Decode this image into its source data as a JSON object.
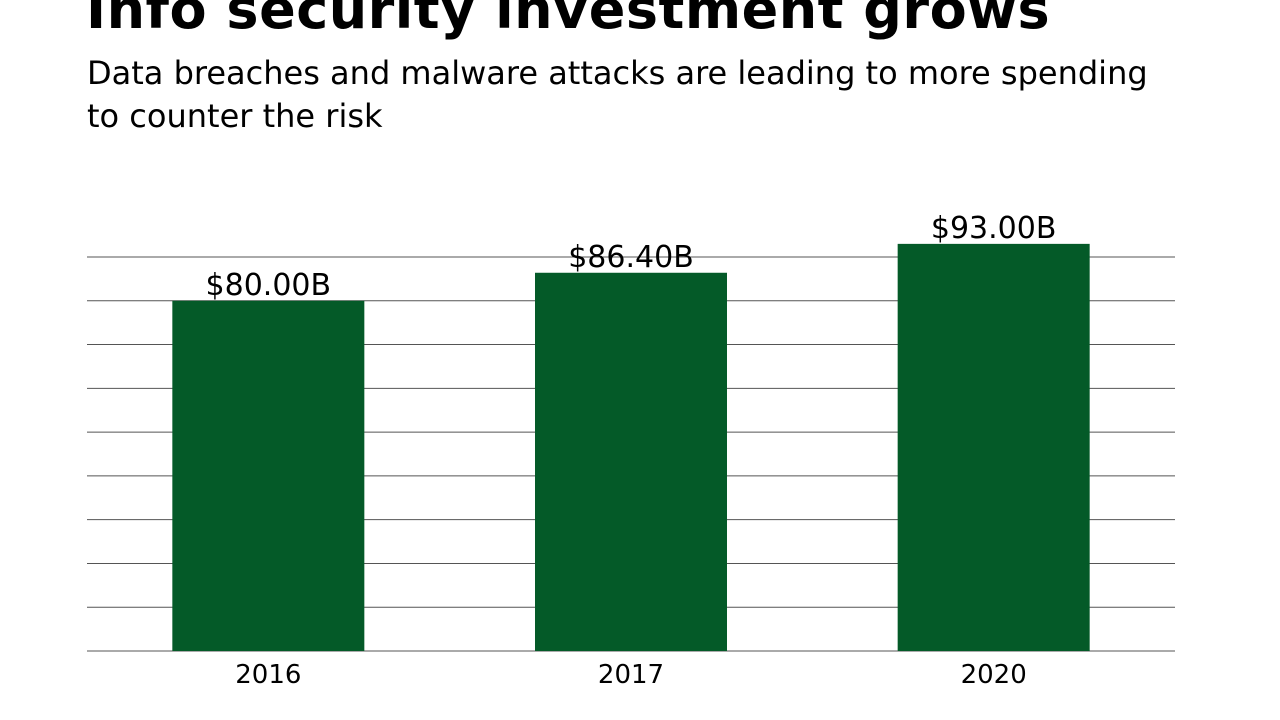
{
  "chart_data": {
    "type": "bar",
    "title": "Info security investment grows",
    "subtitle": "Data breaches and malware attacks are leading to more spending to counter the risk",
    "categories": [
      "2016",
      "2017",
      "2020"
    ],
    "values": [
      80.0,
      86.4,
      93.0
    ],
    "data_labels": [
      "$80.00B",
      "$86.40B",
      "$93.00B"
    ],
    "xlabel": "",
    "ylabel": "",
    "ylim": [
      0,
      90
    ],
    "y_gridlines": [
      0,
      10,
      20,
      30,
      40,
      50,
      60,
      70,
      80,
      90
    ],
    "grid": true,
    "y_tick_labels_shown": false,
    "bar_color": "#045a28",
    "grid_color": "#555555"
  }
}
